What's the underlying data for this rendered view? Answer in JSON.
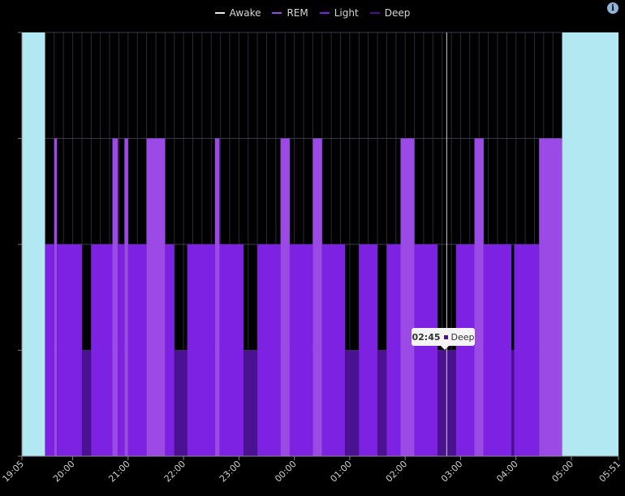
{
  "chart_data": {
    "type": "area",
    "title": "",
    "x_range": [
      "19:05",
      "05:51"
    ],
    "grid": true,
    "legend_placement": "top-center",
    "levels": [
      "Deep",
      "Light",
      "REM",
      "Awake"
    ],
    "series": [
      {
        "name": "Awake",
        "color": "#e8e8e8"
      },
      {
        "name": "REM",
        "color": "#9b4ae6"
      },
      {
        "name": "Light",
        "color": "#7d22e2"
      },
      {
        "name": "Deep",
        "color": "#4a1290"
      }
    ],
    "x_tick_labels": [
      "19:05",
      "20:00",
      "21:00",
      "22:00",
      "23:00",
      "00:00",
      "01:00",
      "02:00",
      "03:00",
      "04:00",
      "05:00",
      "05:51"
    ],
    "segments": [
      {
        "start": "19:05",
        "end": "19:30",
        "stage": "Awake"
      },
      {
        "start": "19:30",
        "end": "19:40",
        "stage": "Light"
      },
      {
        "start": "19:40",
        "end": "19:43",
        "stage": "REM"
      },
      {
        "start": "19:43",
        "end": "20:10",
        "stage": "Light"
      },
      {
        "start": "20:10",
        "end": "20:20",
        "stage": "Deep"
      },
      {
        "start": "20:20",
        "end": "20:43",
        "stage": "Light"
      },
      {
        "start": "20:43",
        "end": "20:49",
        "stage": "REM"
      },
      {
        "start": "20:49",
        "end": "20:56",
        "stage": "Light"
      },
      {
        "start": "20:56",
        "end": "21:00",
        "stage": "REM"
      },
      {
        "start": "21:00",
        "end": "21:20",
        "stage": "Light"
      },
      {
        "start": "21:20",
        "end": "21:40",
        "stage": "REM"
      },
      {
        "start": "21:40",
        "end": "21:50",
        "stage": "Light"
      },
      {
        "start": "21:50",
        "end": "22:04",
        "stage": "Deep"
      },
      {
        "start": "22:04",
        "end": "22:34",
        "stage": "Light"
      },
      {
        "start": "22:34",
        "end": "22:39",
        "stage": "REM"
      },
      {
        "start": "22:39",
        "end": "23:05",
        "stage": "Light"
      },
      {
        "start": "23:05",
        "end": "23:20",
        "stage": "Deep"
      },
      {
        "start": "23:20",
        "end": "23:45",
        "stage": "Light"
      },
      {
        "start": "23:45",
        "end": "23:55",
        "stage": "REM"
      },
      {
        "start": "23:55",
        "end": "00:20",
        "stage": "Light"
      },
      {
        "start": "00:20",
        "end": "00:30",
        "stage": "REM"
      },
      {
        "start": "00:30",
        "end": "00:55",
        "stage": "Light"
      },
      {
        "start": "00:55",
        "end": "01:10",
        "stage": "Deep"
      },
      {
        "start": "01:10",
        "end": "01:30",
        "stage": "Light"
      },
      {
        "start": "01:30",
        "end": "01:40",
        "stage": "Deep"
      },
      {
        "start": "01:40",
        "end": "01:55",
        "stage": "Light"
      },
      {
        "start": "01:55",
        "end": "02:10",
        "stage": "REM"
      },
      {
        "start": "02:10",
        "end": "02:35",
        "stage": "Light"
      },
      {
        "start": "02:35",
        "end": "02:55",
        "stage": "Deep"
      },
      {
        "start": "02:55",
        "end": "03:15",
        "stage": "Light"
      },
      {
        "start": "03:15",
        "end": "03:25",
        "stage": "REM"
      },
      {
        "start": "03:25",
        "end": "03:55",
        "stage": "Light"
      },
      {
        "start": "03:55",
        "end": "03:58",
        "stage": "Deep"
      },
      {
        "start": "03:58",
        "end": "04:25",
        "stage": "Light"
      },
      {
        "start": "04:25",
        "end": "04:50",
        "stage": "REM"
      },
      {
        "start": "04:50",
        "end": "05:51",
        "stage": "Awake"
      }
    ],
    "cursor_time": "02:45",
    "tooltip": {
      "time": "02:45",
      "stage": "Deep"
    }
  }
}
